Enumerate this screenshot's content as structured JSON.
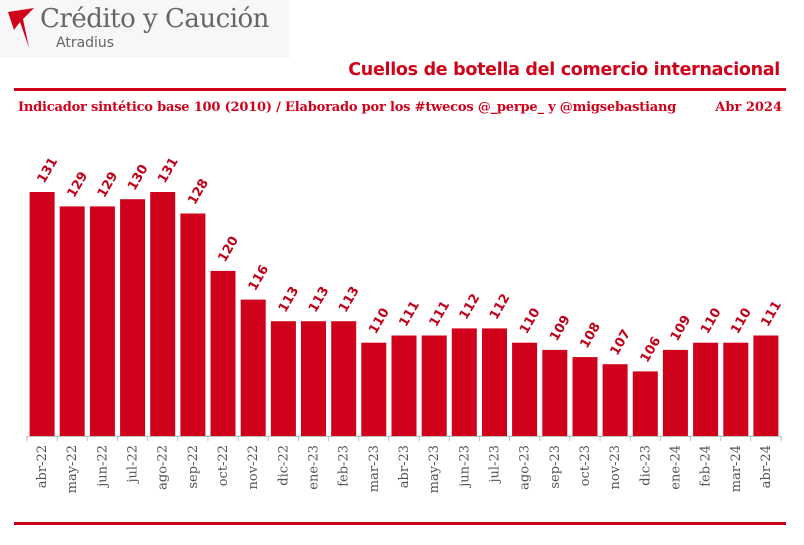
{
  "header": {
    "brand": "Crédito y Caución",
    "brand_sub": "Atradius",
    "title": "Cuellos de botella del comercio internacional",
    "subtitle": "Indicador sintético base 100 (2010) / Elaborado por los #twecos @_perpe_ y @migsebastiang",
    "date": "Abr 2024"
  },
  "colors": {
    "brand_red": "#d0021b",
    "bar": "#d0021b",
    "label": "#c00018",
    "tick_text": "#555555"
  },
  "chart_data": {
    "type": "bar",
    "categories": [
      "abr-22",
      "may-22",
      "jun-22",
      "jul-22",
      "ago-22",
      "sep-22",
      "oct-22",
      "nov-22",
      "dic-22",
      "ene-23",
      "feb-23",
      "mar-23",
      "abr-23",
      "may-23",
      "jun-23",
      "jul-23",
      "ago-23",
      "sep-23",
      "oct-23",
      "nov-23",
      "dic-23",
      "ene-24",
      "feb-24",
      "mar-24",
      "abr-24"
    ],
    "values": [
      131,
      129,
      129,
      130,
      131,
      128,
      120,
      116,
      113,
      113,
      113,
      110,
      111,
      111,
      112,
      112,
      110,
      109,
      108,
      107,
      106,
      109,
      110,
      110,
      111
    ],
    "baseline": 97,
    "grid": false,
    "legend": "none"
  }
}
